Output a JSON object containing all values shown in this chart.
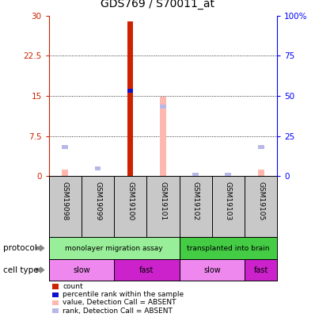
{
  "title": "GDS769 / S70011_at",
  "samples": [
    "GSM19098",
    "GSM19099",
    "GSM19100",
    "GSM19101",
    "GSM19102",
    "GSM19103",
    "GSM19105"
  ],
  "count_values": [
    0,
    0,
    29,
    0,
    0,
    0,
    0
  ],
  "rank_values": [
    0,
    0,
    16,
    0,
    0,
    0,
    0
  ],
  "absent_value_values": [
    1.2,
    0,
    0,
    14.8,
    0.3,
    0.3,
    1.2
  ],
  "absent_rank_values": [
    5.5,
    1.5,
    0,
    13.0,
    0.3,
    0.3,
    5.5
  ],
  "ylim_left": [
    0,
    30
  ],
  "ylim_right": [
    0,
    100
  ],
  "yticks_left": [
    0,
    7.5,
    15,
    22.5,
    30
  ],
  "yticks_right": [
    0,
    25,
    50,
    75,
    100
  ],
  "ytick_labels_left": [
    "0",
    "7.5",
    "15",
    "22.5",
    "30"
  ],
  "ytick_labels_right": [
    "0",
    "25",
    "50",
    "75",
    "100%"
  ],
  "color_count": "#cc2200",
  "color_rank": "#1111cc",
  "color_absent_value": "#ffb8b0",
  "color_absent_rank": "#b8b8e8",
  "color_bg_sample": "#c8c8c8",
  "protocol_groups": [
    {
      "label": "monolayer migration assay",
      "start": 0,
      "end": 4,
      "color": "#99ee99"
    },
    {
      "label": "transplanted into brain",
      "start": 4,
      "end": 7,
      "color": "#44cc44"
    }
  ],
  "cell_type_groups": [
    {
      "label": "slow",
      "start": 0,
      "end": 2,
      "color": "#ee88ee"
    },
    {
      "label": "fast",
      "start": 2,
      "end": 4,
      "color": "#cc22cc"
    },
    {
      "label": "slow",
      "start": 4,
      "end": 6,
      "color": "#ee88ee"
    },
    {
      "label": "fast",
      "start": 6,
      "end": 7,
      "color": "#cc22cc"
    }
  ],
  "legend_items": [
    {
      "label": "count",
      "color": "#cc2200"
    },
    {
      "label": "percentile rank within the sample",
      "color": "#1111cc"
    },
    {
      "label": "value, Detection Call = ABSENT",
      "color": "#ffb8b0"
    },
    {
      "label": "rank, Detection Call = ABSENT",
      "color": "#b8b8e8"
    }
  ],
  "dotted_grid": [
    7.5,
    15,
    22.5
  ],
  "bar_width": 0.35
}
